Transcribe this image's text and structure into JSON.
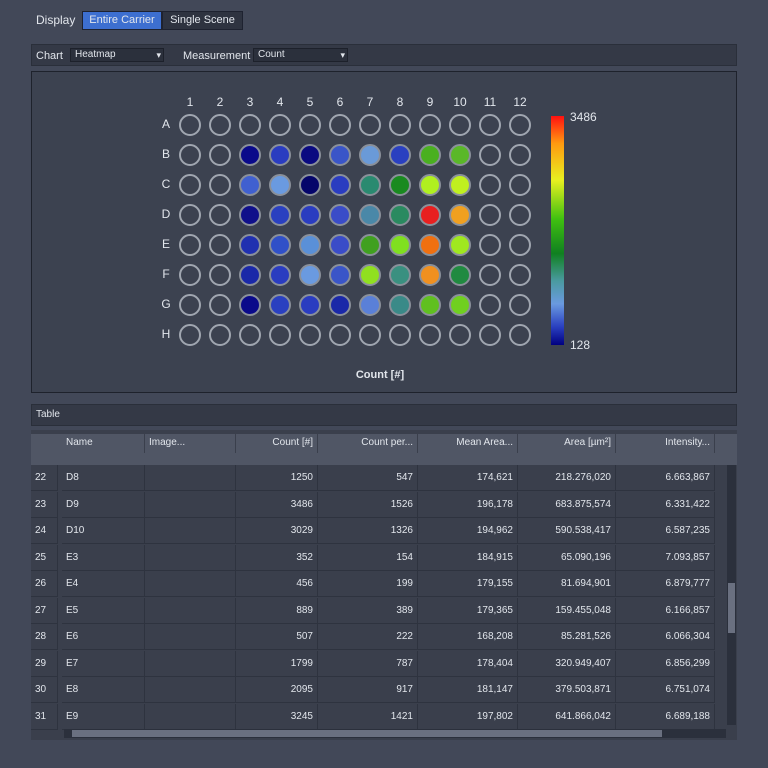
{
  "display": {
    "label": "Display",
    "options": [
      "Entire Carrier",
      "Single Scene"
    ],
    "selected": 0
  },
  "chart_bar": {
    "chart_label": "Chart",
    "chart_value": "Heatmap",
    "measurement_label": "Measurement",
    "measurement_value": "Count"
  },
  "heatmap": {
    "columns": [
      "1",
      "2",
      "3",
      "4",
      "5",
      "6",
      "7",
      "8",
      "9",
      "10",
      "11",
      "12"
    ],
    "rows": [
      "A",
      "B",
      "C",
      "D",
      "E",
      "F",
      "G",
      "H"
    ],
    "wells": [
      [
        null,
        null,
        null,
        null,
        null,
        null,
        null,
        null,
        null,
        null,
        null,
        null
      ],
      [
        null,
        null,
        "#0a0a8a",
        "#2a3cc0",
        "#0a0a80",
        "#3a55c8",
        "#6a9ad8",
        "#2a40c0",
        "#4ab020",
        "#5ab828",
        null,
        null
      ],
      [
        null,
        null,
        "#4060d0",
        "#6a9ae0",
        "#05056a",
        "#2a3cc0",
        "#2a8a70",
        "#1a8a20",
        "#b0f020",
        "#c0f020",
        null,
        null
      ],
      [
        null,
        null,
        "#10108a",
        "#2a40c0",
        "#2a3cc0",
        "#3a4cc8",
        "#4a88a8",
        "#2a8a60",
        "#e82020",
        "#f0a020",
        null,
        null
      ],
      [
        null,
        null,
        "#2030b0",
        "#3050c8",
        "#5a90d8",
        "#3a4cc8",
        "#40a020",
        "#80e020",
        "#f07010",
        "#a0e820",
        null,
        null
      ],
      [
        null,
        null,
        "#1a28a8",
        "#2a3cc0",
        "#6a9ae0",
        "#3a55c8",
        "#90e020",
        "#3a9080",
        "#f09020",
        "#208a40",
        null,
        null
      ],
      [
        null,
        null,
        "#0a0a8a",
        "#2a40c0",
        "#2a3cc0",
        "#1a28a8",
        "#5a80d8",
        "#3a8a88",
        "#60c020",
        "#70d020",
        null,
        null
      ],
      [
        null,
        null,
        null,
        null,
        null,
        null,
        null,
        null,
        null,
        null,
        null,
        null
      ]
    ],
    "colorbar_max": 3486,
    "colorbar_min": 128,
    "axis_label": "Count [#]"
  },
  "table": {
    "title": "Table",
    "headers": [
      "Name",
      "Image...",
      "Count [#]",
      "Count per...",
      "Mean Area...",
      "Area [µm²]",
      "Intensity..."
    ],
    "rows": [
      [
        "22",
        "D8",
        "",
        "1250",
        "547",
        "174,621",
        "218.276,020",
        "6.663,867"
      ],
      [
        "23",
        "D9",
        "",
        "3486",
        "1526",
        "196,178",
        "683.875,574",
        "6.331,422"
      ],
      [
        "24",
        "D10",
        "",
        "3029",
        "1326",
        "194,962",
        "590.538,417",
        "6.587,235"
      ],
      [
        "25",
        "E3",
        "",
        "352",
        "154",
        "184,915",
        "65.090,196",
        "7.093,857"
      ],
      [
        "26",
        "E4",
        "",
        "456",
        "199",
        "179,155",
        "81.694,901",
        "6.879,777"
      ],
      [
        "27",
        "E5",
        "",
        "889",
        "389",
        "179,365",
        "159.455,048",
        "6.166,857"
      ],
      [
        "28",
        "E6",
        "",
        "507",
        "222",
        "168,208",
        "85.281,526",
        "6.066,304"
      ],
      [
        "29",
        "E7",
        "",
        "1799",
        "787",
        "178,404",
        "320.949,407",
        "6.856,299"
      ],
      [
        "30",
        "E8",
        "",
        "2095",
        "917",
        "181,147",
        "379.503,871",
        "6.751,074"
      ],
      [
        "31",
        "E9",
        "",
        "3245",
        "1421",
        "197,802",
        "641.866,042",
        "6.689,188"
      ]
    ]
  }
}
